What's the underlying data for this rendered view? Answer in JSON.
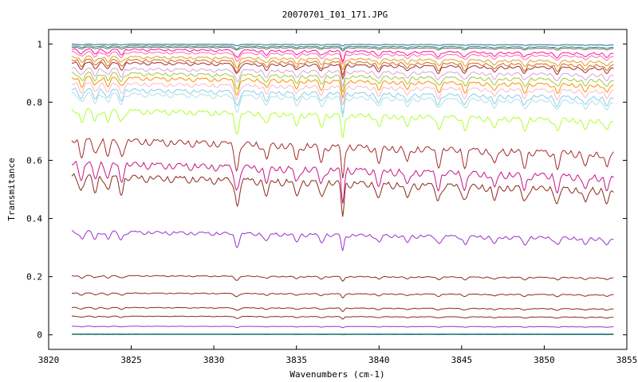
{
  "chart_data": {
    "type": "line",
    "title": "20070701_I01_171.JPG",
    "xlabel": "Wavenumbers (cm-1)",
    "ylabel": "Transmitance",
    "xlim": [
      3820,
      3855
    ],
    "ylim": [
      -0.05,
      1.05
    ],
    "xticks": [
      3820,
      3825,
      3830,
      3835,
      3840,
      3845,
      3850,
      3855
    ],
    "yticks": [
      0,
      0.2,
      0.4,
      0.6,
      0.8,
      1
    ],
    "ytick_labels": [
      "0",
      "0.2",
      "0.4",
      "0.6",
      "0.8",
      "1"
    ],
    "grid": false,
    "legend": "none",
    "x_start": 3821.4,
    "x_end": 3854.2,
    "absorption_lines": [
      3822.0,
      3822.8,
      3823.6,
      3824.4,
      3831.4,
      3833.2,
      3835.0,
      3836.5,
      3837.8,
      3840.0,
      3841.7,
      3843.6,
      3845.2,
      3847.0,
      3848.8,
      3850.8,
      3852.5,
      3853.8
    ],
    "series": [
      {
        "color": "#1f5fb4",
        "baseline": 1.0,
        "depth": 0.01
      },
      {
        "color": "#2e8b57",
        "baseline": 0.995,
        "depth": 0.02
      },
      {
        "color": "#666666",
        "baseline": 0.99,
        "depth": 0.02
      },
      {
        "color": "#ff1493",
        "baseline": 0.985,
        "depth": 0.06
      },
      {
        "color": "#ff69b4",
        "baseline": 0.975,
        "depth": 0.06
      },
      {
        "color": "#e0a020",
        "baseline": 0.96,
        "depth": 0.07
      },
      {
        "color": "#d2691e",
        "baseline": 0.95,
        "depth": 0.08
      },
      {
        "color": "#a52a2a",
        "baseline": 0.94,
        "depth": 0.08
      },
      {
        "color": "#dda0dd",
        "baseline": 0.92,
        "depth": 0.09
      },
      {
        "color": "#9acd32",
        "baseline": 0.905,
        "depth": 0.1
      },
      {
        "color": "#ff8c00",
        "baseline": 0.89,
        "depth": 0.11
      },
      {
        "color": "#ffb6c1",
        "baseline": 0.87,
        "depth": 0.11
      },
      {
        "color": "#87ceeb",
        "baseline": 0.85,
        "depth": 0.12
      },
      {
        "color": "#b0e0e6",
        "baseline": 0.835,
        "depth": 0.12
      },
      {
        "color": "#adff2f",
        "baseline": 0.78,
        "depth": 0.15
      },
      {
        "color": "#a52a2a",
        "baseline": 0.68,
        "depth": 0.2
      },
      {
        "color": "#c71585",
        "baseline": 0.6,
        "depth": 0.2
      },
      {
        "color": "#8b2a1a",
        "baseline": 0.555,
        "depth": 0.2
      },
      {
        "color": "#9932cc",
        "baseline": 0.36,
        "depth": 0.1
      },
      {
        "color": "#8b2a1a",
        "baseline": 0.205,
        "depth": 0.03
      },
      {
        "color": "#8b2a1a",
        "baseline": 0.145,
        "depth": 0.025
      },
      {
        "color": "#8b2a1a",
        "baseline": 0.095,
        "depth": 0.02
      },
      {
        "color": "#8b2a1a",
        "baseline": 0.065,
        "depth": 0.015
      },
      {
        "color": "#9932cc",
        "baseline": 0.03,
        "depth": 0.008
      },
      {
        "color": "#1f5fb4",
        "baseline": 0.003,
        "depth": 0.001
      },
      {
        "color": "#2e8b57",
        "baseline": 0.001,
        "depth": 0.001
      }
    ]
  }
}
